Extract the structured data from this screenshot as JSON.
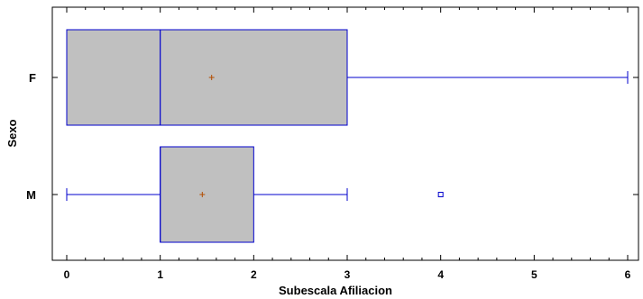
{
  "chart_data": {
    "type": "boxplot",
    "xlabel": "Subescala Afiliacion",
    "ylabel": "Sexo",
    "xlim": [
      -0.15,
      6.25
    ],
    "x_ticks": [
      0,
      1,
      2,
      3,
      4,
      5,
      6
    ],
    "x_minor_step": 0.2,
    "grid": false,
    "orientation": "horizontal",
    "categories": [
      "F",
      "M"
    ],
    "series": [
      {
        "category": "F",
        "min": 0,
        "q1": 0,
        "median": 1,
        "q3": 3,
        "max": 6,
        "mean": 1.55,
        "outliers": []
      },
      {
        "category": "M",
        "min": 0,
        "q1": 1,
        "median": 1,
        "q3": 2,
        "max": 3,
        "mean": 1.45,
        "outliers": [
          4
        ]
      }
    ],
    "colors": {
      "box_fill": "#c0c0c0",
      "box_stroke": "#0000cc",
      "mean_marker": "#b34d00",
      "axis": "#000000"
    }
  }
}
